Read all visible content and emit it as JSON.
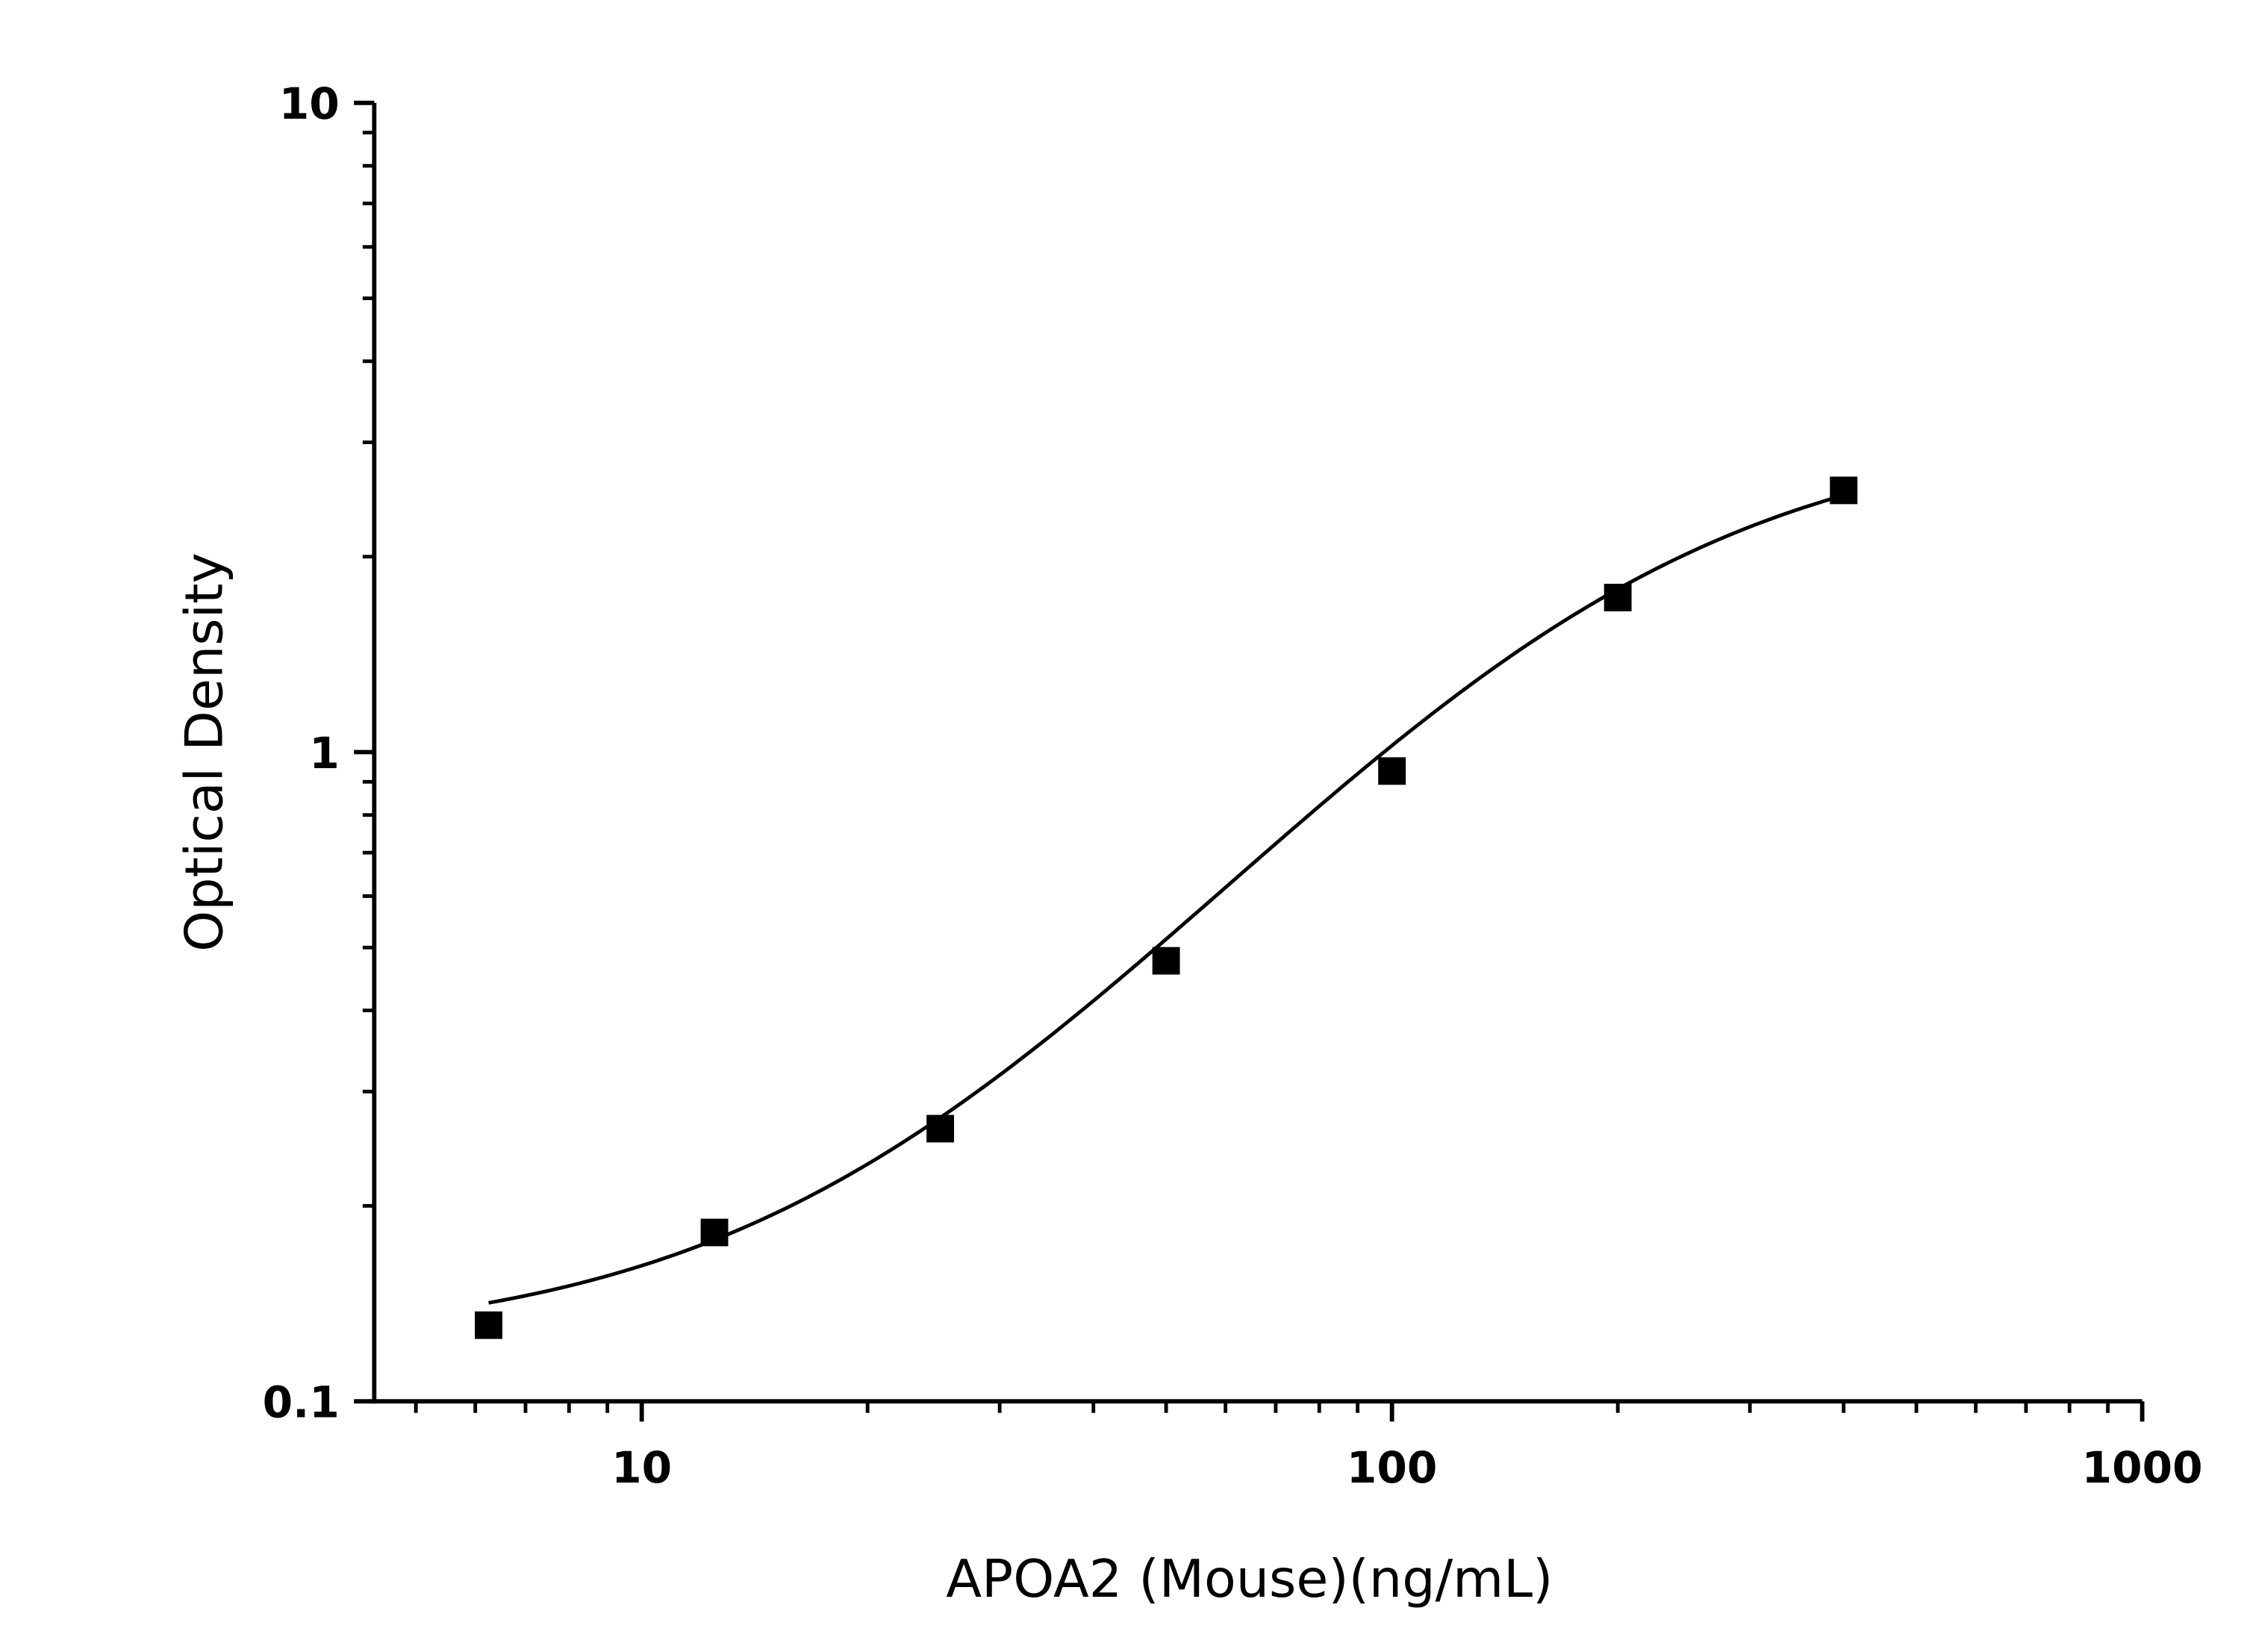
{
  "chart_data": {
    "type": "scatter",
    "title": "",
    "xlabel": "APOA2 (Mouse)(ng/mL)",
    "ylabel": "Optical Density",
    "x_scale": "log",
    "y_scale": "log",
    "xlim": [
      4.4,
      1000
    ],
    "ylim": [
      0.1,
      10
    ],
    "x_ticks": [
      {
        "value": 10,
        "label": "10"
      },
      {
        "value": 100,
        "label": "100"
      },
      {
        "value": 1000,
        "label": "1000"
      }
    ],
    "y_ticks": [
      {
        "value": 0.1,
        "label": "0.1"
      },
      {
        "value": 1,
        "label": "1"
      },
      {
        "value": 10,
        "label": "10"
      }
    ],
    "grid": false,
    "legend": "none",
    "marker": "square",
    "color": "#000000",
    "points": [
      {
        "x": 6.25,
        "y": 0.131
      },
      {
        "x": 12.5,
        "y": 0.182
      },
      {
        "x": 25,
        "y": 0.263
      },
      {
        "x": 50,
        "y": 0.477
      },
      {
        "x": 100,
        "y": 0.935
      },
      {
        "x": 200,
        "y": 1.73
      },
      {
        "x": 400,
        "y": 2.53
      }
    ],
    "fit_curve": "four-parameter logistic"
  }
}
